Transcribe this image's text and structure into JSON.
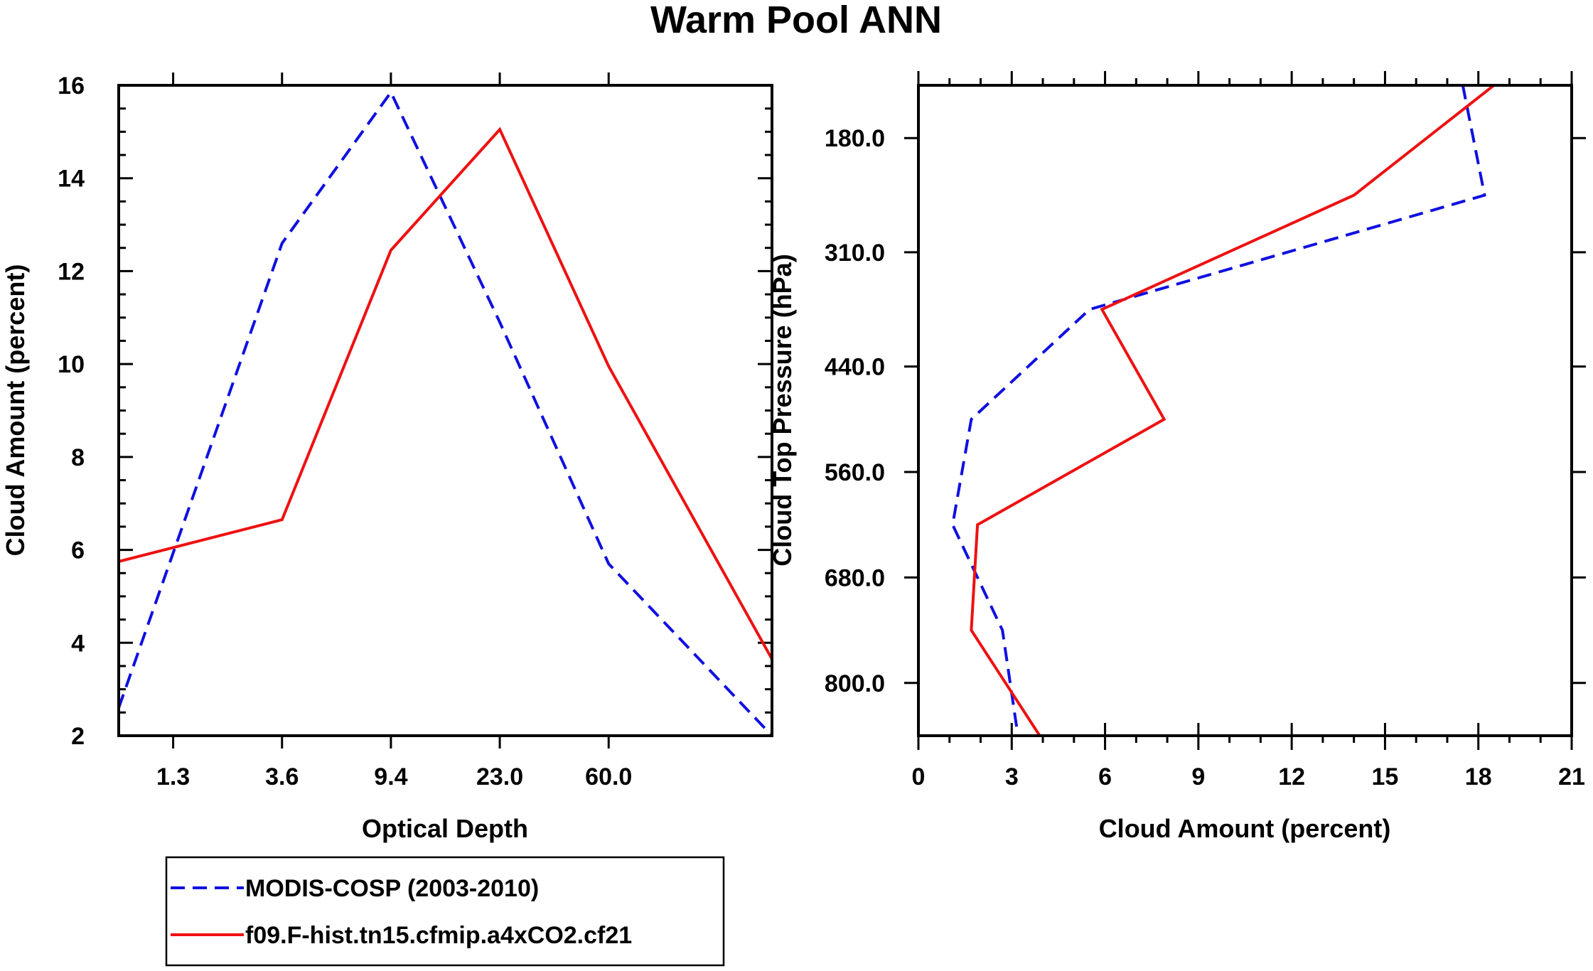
{
  "title": "Warm Pool ANN",
  "colors": {
    "modis": "#1010e0",
    "model": "#ee1111",
    "axes": "#000000"
  },
  "legend": {
    "entries": [
      {
        "label": "MODIS-COSP (2003-2010)",
        "style": "dashed",
        "color": "#1010e0"
      },
      {
        "label": "f09.F-hist.tn15.cfmip.a4xCO2.cf21",
        "style": "solid",
        "color": "#ee1111"
      }
    ]
  },
  "chart_data": [
    {
      "type": "line",
      "panel": "left",
      "xlabel": "Optical Depth",
      "ylabel": "Cloud Amount (percent)",
      "x_scale": "index",
      "x_index_range": [
        0.5,
        6.5
      ],
      "x_points": [
        1,
        2,
        3,
        4,
        5,
        6
      ],
      "x_tick_positions": [
        1,
        2,
        3,
        4,
        5
      ],
      "x_tick_labels": [
        "1.3",
        "3.6",
        "9.4",
        "23.0",
        "60.0"
      ],
      "ylim": [
        2,
        16
      ],
      "y_ticks": [
        2,
        4,
        6,
        8,
        10,
        12,
        14,
        16
      ],
      "series": [
        {
          "name": "MODIS-COSP (2003-2010)",
          "x": [
            0.5,
            2,
            3,
            4,
            5,
            6.5
          ],
          "values": [
            2.6,
            12.6,
            15.85,
            10.9,
            5.7,
            2.0
          ]
        },
        {
          "name": "f09.F-hist.tn15.cfmip.a4xCO2.cf21",
          "x": [
            0.5,
            2,
            3,
            4,
            5,
            6.5
          ],
          "values": [
            5.75,
            6.65,
            12.45,
            15.05,
            9.95,
            3.65
          ]
        }
      ]
    },
    {
      "type": "line",
      "panel": "right",
      "xlabel": "Cloud Amount (percent)",
      "ylabel": "Cloud Top Pressure (hPa)",
      "xlim": [
        0,
        21
      ],
      "x_ticks": [
        0,
        3,
        6,
        9,
        12,
        15,
        18,
        21
      ],
      "y_scale": "pressure, increasing downward",
      "ylim": [
        120,
        860
      ],
      "y_ticks": [
        180,
        310,
        440,
        560,
        680,
        800
      ],
      "y_tick_labels": [
        "180.0",
        "310.0",
        "440.0",
        "560.0",
        "680.0",
        "800.0"
      ],
      "series": [
        {
          "name": "MODIS-COSP (2003-2010)",
          "pressure": [
            120,
            245,
            375,
            500,
            620,
            740,
            860
          ],
          "values": [
            17.5,
            18.2,
            5.5,
            1.7,
            1.1,
            2.7,
            3.2
          ]
        },
        {
          "name": "f09.F-hist.tn15.cfmip.a4xCO2.cf21",
          "pressure": [
            120,
            245,
            375,
            500,
            620,
            740,
            860
          ],
          "values": [
            18.5,
            14.0,
            5.9,
            7.9,
            1.9,
            1.7,
            3.9
          ]
        }
      ]
    }
  ]
}
